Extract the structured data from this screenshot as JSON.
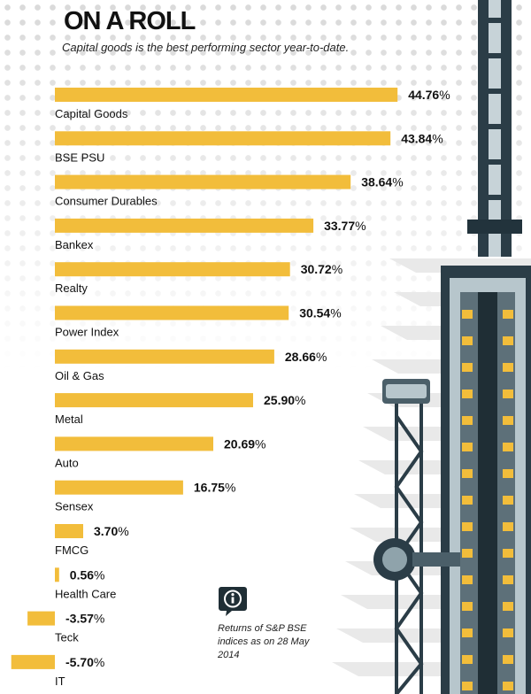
{
  "header": {
    "title": "ON A ROLL",
    "subtitle": "Capital goods is the best performing sector year-to-date."
  },
  "note": {
    "text": "Returns of S&P BSE indices as on 28 May 2014",
    "icon": "info-icon"
  },
  "colors": {
    "bar": "#f2bd3b",
    "text": "#111111",
    "tower_dark": "#2b3d47",
    "tower_light": "#c7d3d8",
    "stripe": "#e6e6e6"
  },
  "chart_data": {
    "type": "bar",
    "orientation": "horizontal",
    "title": "ON A ROLL",
    "subtitle": "Capital goods is the best performing sector year-to-date.",
    "unit": "%",
    "categories": [
      "Capital Goods",
      "BSE PSU",
      "Consumer Durables",
      "Bankex",
      "Realty",
      "Power Index",
      "Oil & Gas",
      "Metal",
      "Auto",
      "Sensex",
      "FMCG",
      "Health Care",
      "Teck",
      "IT"
    ],
    "values": [
      44.76,
      43.84,
      38.64,
      33.77,
      30.72,
      30.54,
      28.66,
      25.9,
      20.69,
      16.75,
      3.7,
      0.56,
      -3.57,
      -5.7
    ],
    "value_labels": [
      "44.76",
      "43.84",
      "38.64",
      "33.77",
      "30.72",
      "30.54",
      "28.66",
      "25.90",
      "20.69",
      "16.75",
      "3.70",
      "0.56",
      "-3.57",
      "-5.70"
    ],
    "grid": false,
    "legend": "none"
  }
}
